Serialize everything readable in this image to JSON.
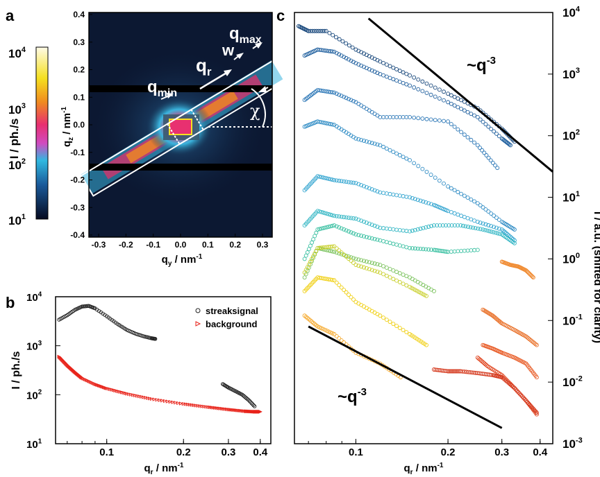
{
  "panels": {
    "a": "a",
    "b": "b",
    "c": "c"
  },
  "colorbar": {
    "label": "I / ph./s",
    "ticks": [
      {
        "base": "10",
        "exp": "4"
      },
      {
        "base": "10",
        "exp": "3"
      },
      {
        "base": "10",
        "exp": "2"
      },
      {
        "base": "10",
        "exp": "1"
      }
    ]
  },
  "panel_a": {
    "xlabel": {
      "main": "q",
      "sub": "y",
      "unit": " / nm",
      "sup": "-1"
    },
    "ylabel": {
      "main": "q",
      "sub": "z",
      "unit": " / nm",
      "sup": "-1"
    },
    "xticks": [
      "-0.3",
      "-0.2",
      "-0.1",
      "0.0",
      "0.1",
      "0.2",
      "0.3"
    ],
    "yticks": [
      "0.4",
      "0.3",
      "0.2",
      "0.1",
      "0.0",
      "-0.1",
      "-0.2",
      "-0.3",
      "-0.4"
    ],
    "annotations": {
      "qmax": "q",
      "qmax_sub": "max",
      "w": "w",
      "qr": "q",
      "qr_sub": "r",
      "qmin": "q",
      "qmin_sub": "min",
      "chi": "χ"
    }
  },
  "chart_data": [
    {
      "type": "scatter",
      "panel": "b",
      "xlabel": "q_r / nm^-1",
      "ylabel": "I / ph./s",
      "xscale": "log",
      "yscale": "log",
      "xlim": [
        0.063,
        0.44
      ],
      "ylim": [
        10,
        10000
      ],
      "xticks": [
        "0.1",
        "0.2",
        "0.3",
        "0.4"
      ],
      "yticks": [
        {
          "base": "10",
          "exp": "4"
        },
        {
          "base": "10",
          "exp": "3"
        },
        {
          "base": "10",
          "exp": "2"
        },
        {
          "base": "10",
          "exp": "1"
        }
      ],
      "legend_position": "top-right",
      "series": [
        {
          "name": "streaksignal",
          "color": "#222222",
          "marker": "circle",
          "x": [
            0.065,
            0.07,
            0.075,
            0.08,
            0.085,
            0.09,
            0.1,
            0.11,
            0.12,
            0.13,
            0.14,
            0.15,
            0.155,
            0.285,
            0.3,
            0.32,
            0.34,
            0.36,
            0.38
          ],
          "y": [
            3400,
            4200,
            5400,
            6300,
            6500,
            5800,
            4000,
            2800,
            2100,
            1750,
            1550,
            1420,
            1380,
            165,
            140,
            118,
            100,
            78,
            58
          ]
        },
        {
          "name": "background",
          "color": "#e8231a",
          "marker": "triangle",
          "x": [
            0.065,
            0.07,
            0.075,
            0.08,
            0.09,
            0.1,
            0.12,
            0.15,
            0.2,
            0.25,
            0.3,
            0.35,
            0.38,
            0.4
          ],
          "y": [
            600,
            400,
            290,
            220,
            165,
            135,
            105,
            82,
            65,
            56,
            50,
            46,
            45,
            45
          ]
        }
      ]
    },
    {
      "type": "scatter",
      "panel": "c",
      "xlabel": "q_r / nm^-1",
      "ylabel": "I / a.u. (shifted for clarity)",
      "xscale": "log",
      "yscale": "log",
      "xlim": [
        0.063,
        0.44
      ],
      "ylim": [
        0.001,
        10000
      ],
      "xticks": [
        "0.1",
        "0.2",
        "0.3",
        "0.4"
      ],
      "yticks": [
        {
          "base": "10",
          "exp": "4"
        },
        {
          "base": "10",
          "exp": "3"
        },
        {
          "base": "10",
          "exp": "2"
        },
        {
          "base": "10",
          "exp": "1"
        },
        {
          "base": "10",
          "exp": "0"
        },
        {
          "base": "10",
          "exp": "-1"
        },
        {
          "base": "10",
          "exp": "-2"
        },
        {
          "base": "10",
          "exp": "-3"
        }
      ],
      "annotations": [
        {
          "text": "~q",
          "sup": "-3"
        },
        {
          "text": "~q",
          "sup": "-3"
        }
      ],
      "guides": [
        {
          "x": [
            0.11,
            0.45
          ],
          "y": [
            8000,
            26
          ]
        },
        {
          "x": [
            0.07,
            0.3
          ],
          "y": [
            0.08,
            0.0018
          ]
        }
      ],
      "series": [
        {
          "color": "#15457a",
          "x": [
            0.065,
            0.07,
            0.08,
            0.1,
            0.12,
            0.15,
            0.2,
            0.25,
            0.3,
            0.33
          ],
          "y": [
            6000,
            5000,
            5000,
            2500,
            1600,
            950,
            480,
            280,
            130,
            80
          ]
        },
        {
          "color": "#1f5f9e",
          "x": [
            0.068,
            0.075,
            0.085,
            0.1,
            0.12,
            0.15,
            0.2,
            0.25,
            0.3,
            0.32
          ],
          "y": [
            2000,
            2500,
            2300,
            1500,
            1000,
            650,
            350,
            200,
            90,
            70
          ]
        },
        {
          "color": "#2774b5",
          "x": [
            0.068,
            0.075,
            0.085,
            0.1,
            0.12,
            0.15,
            0.2,
            0.25,
            0.29
          ],
          "y": [
            380,
            550,
            500,
            350,
            200,
            200,
            170,
            70,
            30
          ]
        },
        {
          "color": "#2e8bc4",
          "x": [
            0.068,
            0.075,
            0.085,
            0.1,
            0.12,
            0.15,
            0.2,
            0.25,
            0.3,
            0.33
          ],
          "y": [
            140,
            170,
            150,
            90,
            70,
            40,
            15,
            8,
            4,
            3
          ]
        },
        {
          "color": "#2fa3cf",
          "x": [
            0.068,
            0.075,
            0.085,
            0.1,
            0.12,
            0.15,
            0.18,
            0.2,
            0.25,
            0.3,
            0.33
          ],
          "y": [
            13,
            22,
            19,
            17,
            12,
            10,
            7.5,
            6,
            4,
            3,
            2
          ]
        },
        {
          "color": "#2fb5c3",
          "x": [
            0.068,
            0.075,
            0.085,
            0.1,
            0.12,
            0.15,
            0.18,
            0.22,
            0.26,
            0.3,
            0.33
          ],
          "y": [
            3.5,
            6,
            5,
            4.5,
            3.2,
            2.8,
            3.5,
            3.5,
            3,
            2.5,
            1.8
          ]
        },
        {
          "color": "#37bfa0",
          "x": [
            0.068,
            0.075,
            0.085,
            0.1,
            0.12,
            0.15,
            0.18,
            0.2,
            0.25
          ],
          "y": [
            1,
            3,
            3.5,
            2.5,
            2,
            1.5,
            1.4,
            1.3,
            1.4
          ]
        },
        {
          "color": "#7ac25c",
          "x": [
            0.068,
            0.075,
            0.085,
            0.1,
            0.12,
            0.15,
            0.18
          ],
          "y": [
            0.5,
            1.5,
            1.3,
            1,
            0.8,
            0.5,
            0.3
          ]
        },
        {
          "color": "#c8cf2a",
          "x": [
            0.068,
            0.075,
            0.085,
            0.1,
            0.12,
            0.15,
            0.17
          ],
          "y": [
            0.6,
            1.5,
            1.6,
            0.8,
            0.6,
            0.35,
            0.25
          ]
        },
        {
          "color": "#f0cf10",
          "x": [
            0.068,
            0.075,
            0.085,
            0.1,
            0.12,
            0.15,
            0.17
          ],
          "y": [
            0.3,
            0.5,
            0.45,
            0.2,
            0.12,
            0.06,
            0.04
          ]
        },
        {
          "color": "#f5a82a",
          "x": [
            0.068,
            0.075,
            0.085,
            0.1,
            0.12,
            0.14
          ],
          "y": [
            0.12,
            0.08,
            0.06,
            0.03,
            0.02,
            0.012
          ]
        },
        {
          "color": "#f08a30",
          "x": [
            0.3,
            0.32,
            0.34,
            0.36,
            0.38
          ],
          "y": [
            0.9,
            0.8,
            0.75,
            0.65,
            0.5
          ]
        },
        {
          "color": "#e9722b",
          "x": [
            0.26,
            0.28,
            0.3,
            0.33,
            0.36,
            0.39
          ],
          "y": [
            0.15,
            0.12,
            0.09,
            0.07,
            0.055,
            0.04
          ]
        },
        {
          "color": "#e85d28",
          "x": [
            0.26,
            0.28,
            0.3,
            0.33,
            0.36,
            0.39
          ],
          "y": [
            0.04,
            0.035,
            0.03,
            0.025,
            0.02,
            0.012
          ]
        },
        {
          "color": "#e0451f",
          "x": [
            0.25,
            0.27,
            0.3,
            0.33,
            0.36,
            0.39
          ],
          "y": [
            0.025,
            0.018,
            0.013,
            0.008,
            0.005,
            0.003
          ]
        },
        {
          "color": "#d4361a",
          "x": [
            0.18,
            0.2,
            0.22,
            0.25,
            0.28,
            0.3,
            0.33,
            0.36,
            0.39
          ],
          "y": [
            0.016,
            0.015,
            0.015,
            0.014,
            0.013,
            0.012,
            0.008,
            0.005,
            0.0032
          ]
        }
      ]
    }
  ]
}
